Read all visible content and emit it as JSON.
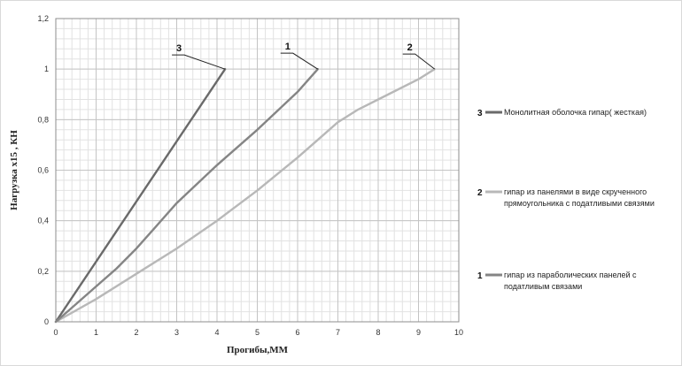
{
  "chart_data": {
    "type": "line",
    "xlabel": "Прогибы,ММ",
    "ylabel": "Нагрузка х15 , КН",
    "xlim": [
      0,
      10
    ],
    "ylim": [
      0,
      1.2
    ],
    "x_ticks": [
      "0",
      "1",
      "2",
      "3",
      "4",
      "5",
      "6",
      "7",
      "8",
      "9",
      "10"
    ],
    "y_ticks": [
      "0",
      "0,2",
      "0,4",
      "0,6",
      "0,8",
      "1",
      "1,2"
    ],
    "grid": true,
    "minor_grid": true,
    "legend_position": "right",
    "series": [
      {
        "name": "Монолитная оболочка гипар( жесткая)",
        "number": "3",
        "color": "#6a6a6a",
        "x": [
          0,
          4.2
        ],
        "y": [
          0,
          1.0
        ]
      },
      {
        "name": "гипар из панелями в виде скрученного прямоугольника с податливыми связями",
        "number": "2",
        "color": "#b8b8b8",
        "x": [
          0,
          1,
          2,
          3,
          4,
          5,
          6,
          6.5,
          7,
          7.5,
          8,
          8.5,
          9,
          9.4
        ],
        "y": [
          0,
          0.09,
          0.19,
          0.29,
          0.4,
          0.52,
          0.65,
          0.72,
          0.79,
          0.84,
          0.88,
          0.92,
          0.96,
          1.0
        ]
      },
      {
        "name": "гипар из параболических панелей с податливым связами",
        "number": "1",
        "color": "#858585",
        "x": [
          0,
          0.5,
          1,
          1.5,
          2,
          2.5,
          3,
          3.2,
          4,
          5,
          6,
          6.5
        ],
        "y": [
          0,
          0.07,
          0.14,
          0.21,
          0.29,
          0.38,
          0.47,
          0.5,
          0.62,
          0.76,
          0.91,
          1.0
        ]
      }
    ],
    "callouts": [
      "3",
      "1",
      "2"
    ],
    "legend_lines": [
      [
        "Монолитная оболочка гипар( жесткая)"
      ],
      [
        "гипар из панелями в виде скрученного",
        "прямоугольника с податливыми связями"
      ],
      [
        "гипар из параболических панелей с",
        "податливым связами"
      ]
    ]
  }
}
